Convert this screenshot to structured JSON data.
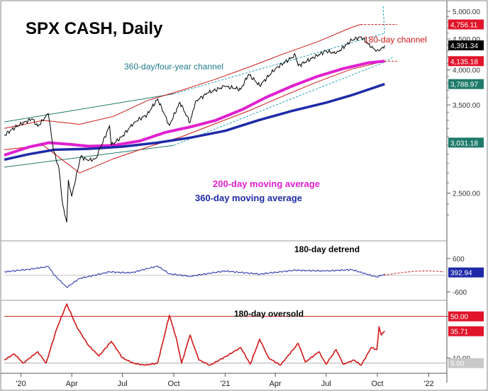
{
  "chart_data": [
    {
      "type": "line",
      "title": "SPX CASH, Daily",
      "scale": "log",
      "ylim": [
        2200,
        5000
      ],
      "xlim": [
        "2019-12-02",
        "2022-01-31"
      ],
      "y_ticks": [
        {
          "value": 5000,
          "label": "5,000.00"
        },
        {
          "value": 4500,
          "label": "4,500.00"
        },
        {
          "value": 4000,
          "label": "4,000.00"
        },
        {
          "value": 3500,
          "label": "3,500.00"
        },
        {
          "value": 2500,
          "label": "2,500.00"
        }
      ],
      "x_ticks": [
        {
          "date": "2020-01-01",
          "label": "'20"
        },
        {
          "date": "2020-04-01",
          "label": "Apr"
        },
        {
          "date": "2020-07-01",
          "label": "Jul"
        },
        {
          "date": "2020-10-01",
          "label": "Oct"
        },
        {
          "date": "2021-01-01",
          "label": "'21"
        },
        {
          "date": "2021-04-01",
          "label": "Apr"
        },
        {
          "date": "2021-07-01",
          "label": "Jul"
        },
        {
          "date": "2021-10-01",
          "label": "Oct"
        },
        {
          "date": "2022-01-01",
          "label": "'22"
        }
      ],
      "value_tags": [
        {
          "value": 4756.11,
          "label": "4,756.11",
          "color": "#e0142a"
        },
        {
          "value": 4391.34,
          "label": "4,391.34",
          "color": "#000000"
        },
        {
          "value": 4135.18,
          "label": "4,135.18",
          "color": "#e0142a"
        },
        {
          "value": 3788.97,
          "label": "3,788.97",
          "color": "#1f7a6a"
        },
        {
          "value": 3031.18,
          "label": "3,031.18",
          "color": "#1f7a6a"
        }
      ],
      "annotations": {
        "channel_180": "180-day channel",
        "channel_360": "360-day/four-year channel",
        "ma200": "200-day moving average",
        "ma360": "360-day moving average"
      },
      "series": [
        {
          "name": "SPX",
          "color": "#000000",
          "points": [
            [
              "2019-12-02",
              3115
            ],
            [
              "2019-12-16",
              3190
            ],
            [
              "2020-01-02",
              3258
            ],
            [
              "2020-01-21",
              3320
            ],
            [
              "2020-01-31",
              3225
            ],
            [
              "2020-02-19",
              3386
            ],
            [
              "2020-02-28",
              2954
            ],
            [
              "2020-03-09",
              2746
            ],
            [
              "2020-03-16",
              2386
            ],
            [
              "2020-03-23",
              2237
            ],
            [
              "2020-03-26",
              2630
            ],
            [
              "2020-04-01",
              2470
            ],
            [
              "2020-04-17",
              2875
            ],
            [
              "2020-05-01",
              2830
            ],
            [
              "2020-05-14",
              2852
            ],
            [
              "2020-06-08",
              3232
            ],
            [
              "2020-06-11",
              3002
            ],
            [
              "2020-06-30",
              3100
            ],
            [
              "2020-07-22",
              3276
            ],
            [
              "2020-08-14",
              3372
            ],
            [
              "2020-09-02",
              3580
            ],
            [
              "2020-09-23",
              3237
            ],
            [
              "2020-10-12",
              3534
            ],
            [
              "2020-10-30",
              3270
            ],
            [
              "2020-11-09",
              3550
            ],
            [
              "2020-12-01",
              3662
            ],
            [
              "2020-12-31",
              3756
            ],
            [
              "2021-01-29",
              3714
            ],
            [
              "2021-02-12",
              3934
            ],
            [
              "2021-03-04",
              3768
            ],
            [
              "2021-04-01",
              4019
            ],
            [
              "2021-05-07",
              4232
            ],
            [
              "2021-05-12",
              4063
            ],
            [
              "2021-06-30",
              4297
            ],
            [
              "2021-07-19",
              4258
            ],
            [
              "2021-08-16",
              4479
            ],
            [
              "2021-09-02",
              4537
            ],
            [
              "2021-09-20",
              4358
            ],
            [
              "2021-09-30",
              4307
            ],
            [
              "2021-10-04",
              4300
            ],
            [
              "2021-10-11",
              4361
            ],
            [
              "2021-10-14",
              4391
            ]
          ]
        },
        {
          "name": "200-day moving average",
          "color": "#e020d0",
          "points": [
            [
              "2019-12-02",
              2890
            ],
            [
              "2020-01-15",
              2980
            ],
            [
              "2020-02-20",
              3030
            ],
            [
              "2020-03-30",
              3010
            ],
            [
              "2020-05-01",
              2990
            ],
            [
              "2020-06-15",
              3000
            ],
            [
              "2020-08-01",
              3050
            ],
            [
              "2020-09-15",
              3150
            ],
            [
              "2020-11-01",
              3220
            ],
            [
              "2020-12-15",
              3300
            ],
            [
              "2021-02-01",
              3440
            ],
            [
              "2021-03-15",
              3600
            ],
            [
              "2021-05-01",
              3760
            ],
            [
              "2021-06-15",
              3900
            ],
            [
              "2021-08-01",
              4020
            ],
            [
              "2021-09-15",
              4110
            ],
            [
              "2021-10-14",
              4135
            ]
          ]
        },
        {
          "name": "360-day moving average",
          "color": "#1e2aa8",
          "points": [
            [
              "2019-12-02",
              2840
            ],
            [
              "2020-01-15",
              2900
            ],
            [
              "2020-03-01",
              2950
            ],
            [
              "2020-05-01",
              2960
            ],
            [
              "2020-07-01",
              2985
            ],
            [
              "2020-09-01",
              3030
            ],
            [
              "2020-11-01",
              3090
            ],
            [
              "2021-01-01",
              3170
            ],
            [
              "2021-03-01",
              3300
            ],
            [
              "2021-05-01",
              3420
            ],
            [
              "2021-07-01",
              3530
            ],
            [
              "2021-08-15",
              3630
            ],
            [
              "2021-10-14",
              3789
            ]
          ]
        },
        {
          "name": "180-day channel upper",
          "color": "#d01818",
          "points": [
            [
              "2019-12-02",
              3200
            ],
            [
              "2020-02-10",
              3300
            ],
            [
              "2020-04-15",
              3250
            ],
            [
              "2020-06-15",
              3350
            ],
            [
              "2020-08-15",
              3560
            ],
            [
              "2020-10-15",
              3700
            ],
            [
              "2020-12-15",
              3860
            ],
            [
              "2021-02-15",
              4050
            ],
            [
              "2021-04-15",
              4250
            ],
            [
              "2021-06-15",
              4450
            ],
            [
              "2021-08-15",
              4700
            ],
            [
              "2021-09-01",
              4756
            ]
          ]
        },
        {
          "name": "180-day channel lower",
          "color": "#d01818",
          "points": [
            [
              "2019-12-02",
              2950
            ],
            [
              "2020-02-10",
              3000
            ],
            [
              "2020-04-15",
              2700
            ],
            [
              "2020-06-15",
              2850
            ],
            [
              "2020-08-15",
              2980
            ],
            [
              "2020-10-15",
              3100
            ],
            [
              "2020-12-15",
              3260
            ],
            [
              "2021-02-15",
              3430
            ],
            [
              "2021-04-15",
              3620
            ],
            [
              "2021-06-15",
              3820
            ],
            [
              "2021-08-15",
              4010
            ],
            [
              "2021-10-14",
              4135
            ]
          ]
        },
        {
          "name": "360-day channel upper",
          "color": "#1f7a6a",
          "points": [
            [
              "2019-12-02",
              3280
            ],
            [
              "2020-10-01",
              3650
            ],
            [
              "2021-10-14",
              4600
            ]
          ]
        },
        {
          "name": "360-day channel lower",
          "color": "#1f7a6a",
          "points": [
            [
              "2019-12-02",
              2760
            ],
            [
              "2020-10-01",
              3000
            ],
            [
              "2021-10-14",
              4120
            ]
          ]
        }
      ]
    },
    {
      "type": "line",
      "title": "180-day detrend",
      "ylim": [
        -600,
        600
      ],
      "y_ticks": [
        {
          "value": 600,
          "label": "600"
        },
        {
          "value": -600,
          "label": "-600"
        }
      ],
      "value_tags": [
        {
          "value": 392.94,
          "label": "392.94",
          "color": "#1e2aa8"
        }
      ],
      "series": [
        {
          "name": "180-day detrend",
          "color": "#1e2aa8",
          "points": [
            [
              "2019-12-02",
              120
            ],
            [
              "2020-01-15",
              210
            ],
            [
              "2020-02-19",
              310
            ],
            [
              "2020-03-01",
              0
            ],
            [
              "2020-03-23",
              -440
            ],
            [
              "2020-04-15",
              -120
            ],
            [
              "2020-06-08",
              120
            ],
            [
              "2020-07-15",
              80
            ],
            [
              "2020-09-02",
              330
            ],
            [
              "2020-09-23",
              50
            ],
            [
              "2020-10-30",
              -40
            ],
            [
              "2020-12-31",
              150
            ],
            [
              "2021-03-04",
              40
            ],
            [
              "2021-05-07",
              180
            ],
            [
              "2021-06-30",
              150
            ],
            [
              "2021-08-16",
              200
            ],
            [
              "2021-09-30",
              -70
            ],
            [
              "2021-10-14",
              40
            ]
          ]
        }
      ]
    },
    {
      "type": "line",
      "title": "180-day oversold",
      "ylim": [
        0,
        60
      ],
      "y_ticks": [
        {
          "value": 50,
          "label": "50.00"
        },
        {
          "value": 10,
          "label": "10.00"
        }
      ],
      "value_tags": [
        {
          "value": 50,
          "label": "50.00",
          "color": "#e0142a"
        },
        {
          "value": 35.71,
          "label": "35.71",
          "color": "#e0142a"
        },
        {
          "value": 5,
          "label": "5.00",
          "color": "#c8c8c8"
        }
      ],
      "series": [
        {
          "name": "180-day oversold",
          "color": "#d01818",
          "points": [
            [
              "2019-12-02",
              8
            ],
            [
              "2019-12-20",
              14
            ],
            [
              "2020-01-05",
              5
            ],
            [
              "2020-01-31",
              16
            ],
            [
              "2020-02-15",
              5
            ],
            [
              "2020-03-05",
              38
            ],
            [
              "2020-03-23",
              62
            ],
            [
              "2020-04-10",
              40
            ],
            [
              "2020-05-01",
              22
            ],
            [
              "2020-05-20",
              12
            ],
            [
              "2020-06-11",
              26
            ],
            [
              "2020-07-01",
              10
            ],
            [
              "2020-07-20",
              5
            ],
            [
              "2020-08-10",
              3
            ],
            [
              "2020-09-02",
              5
            ],
            [
              "2020-09-23",
              51
            ],
            [
              "2020-10-05",
              30
            ],
            [
              "2020-10-15",
              5
            ],
            [
              "2020-10-30",
              32
            ],
            [
              "2020-11-15",
              8
            ],
            [
              "2020-12-05",
              3
            ],
            [
              "2021-01-04",
              12
            ],
            [
              "2021-01-29",
              20
            ],
            [
              "2021-02-15",
              4
            ],
            [
              "2021-03-04",
              28
            ],
            [
              "2021-03-20",
              10
            ],
            [
              "2021-04-10",
              3
            ],
            [
              "2021-05-12",
              24
            ],
            [
              "2021-05-25",
              6
            ],
            [
              "2021-06-18",
              16
            ],
            [
              "2021-07-01",
              4
            ],
            [
              "2021-07-19",
              18
            ],
            [
              "2021-08-01",
              4
            ],
            [
              "2021-08-20",
              8
            ],
            [
              "2021-09-02",
              3
            ],
            [
              "2021-09-20",
              20
            ],
            [
              "2021-09-30",
              18
            ],
            [
              "2021-10-04",
              40
            ],
            [
              "2021-10-08",
              32
            ],
            [
              "2021-10-14",
              36
            ]
          ]
        }
      ]
    }
  ]
}
